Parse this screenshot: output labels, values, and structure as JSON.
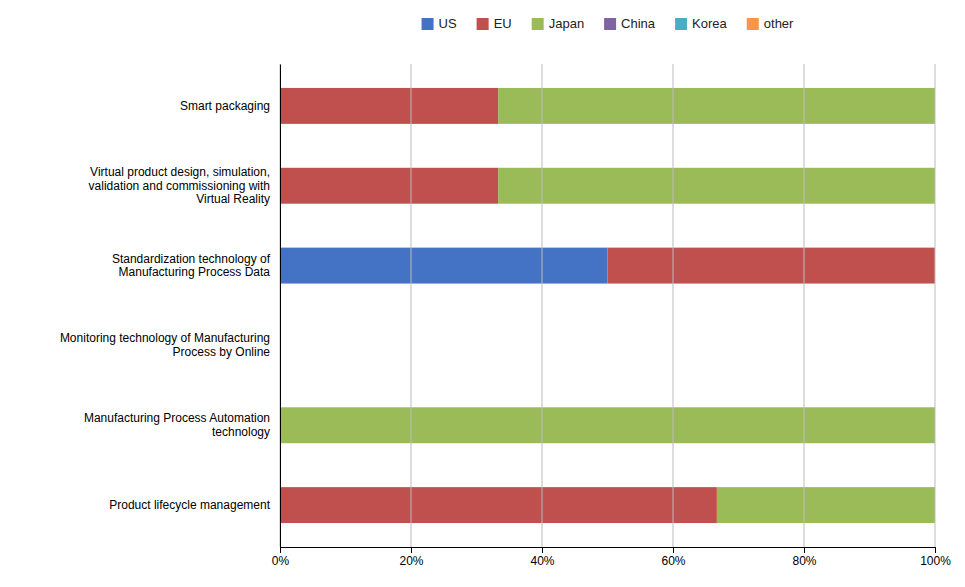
{
  "chart_data": {
    "type": "bar",
    "orientation": "horizontal",
    "stacked": true,
    "categories": [
      "Smart packaging",
      "Virtual product design, simulation,\nvalidation and commissioning with\nVirtual Reality",
      "Standardization technology of\nManufacturing Process Data",
      "Monitoring technology of Manufacturing\nProcess by Online",
      "Manufacturing Process Automation\ntechnology",
      "Product lifecycle management"
    ],
    "series": [
      {
        "name": "US",
        "color": "#4472C4",
        "values": [
          0,
          0,
          50,
          0,
          0,
          0
        ]
      },
      {
        "name": "EU",
        "color": "#C0504D",
        "values": [
          33.3,
          33.3,
          50,
          0,
          0,
          66.7
        ]
      },
      {
        "name": "Japan",
        "color": "#9BBB59",
        "values": [
          66.7,
          66.7,
          0,
          0,
          100,
          33.3
        ]
      },
      {
        "name": "China",
        "color": "#8064A2",
        "values": [
          0,
          0,
          0,
          0,
          0,
          0
        ]
      },
      {
        "name": "Korea",
        "color": "#4BACC6",
        "values": [
          0,
          0,
          0,
          0,
          0,
          0
        ]
      },
      {
        "name": "other",
        "color": "#F79646",
        "values": [
          0,
          0,
          0,
          0,
          0,
          0
        ]
      }
    ],
    "xlim": [
      0,
      100
    ],
    "xticks": [
      {
        "value": 0,
        "label": "0%"
      },
      {
        "value": 20,
        "label": "20%"
      },
      {
        "value": 40,
        "label": "40%"
      },
      {
        "value": 60,
        "label": "60%"
      },
      {
        "value": 80,
        "label": "80%"
      },
      {
        "value": 100,
        "label": "100%"
      }
    ],
    "grid": true,
    "legend": "top"
  }
}
